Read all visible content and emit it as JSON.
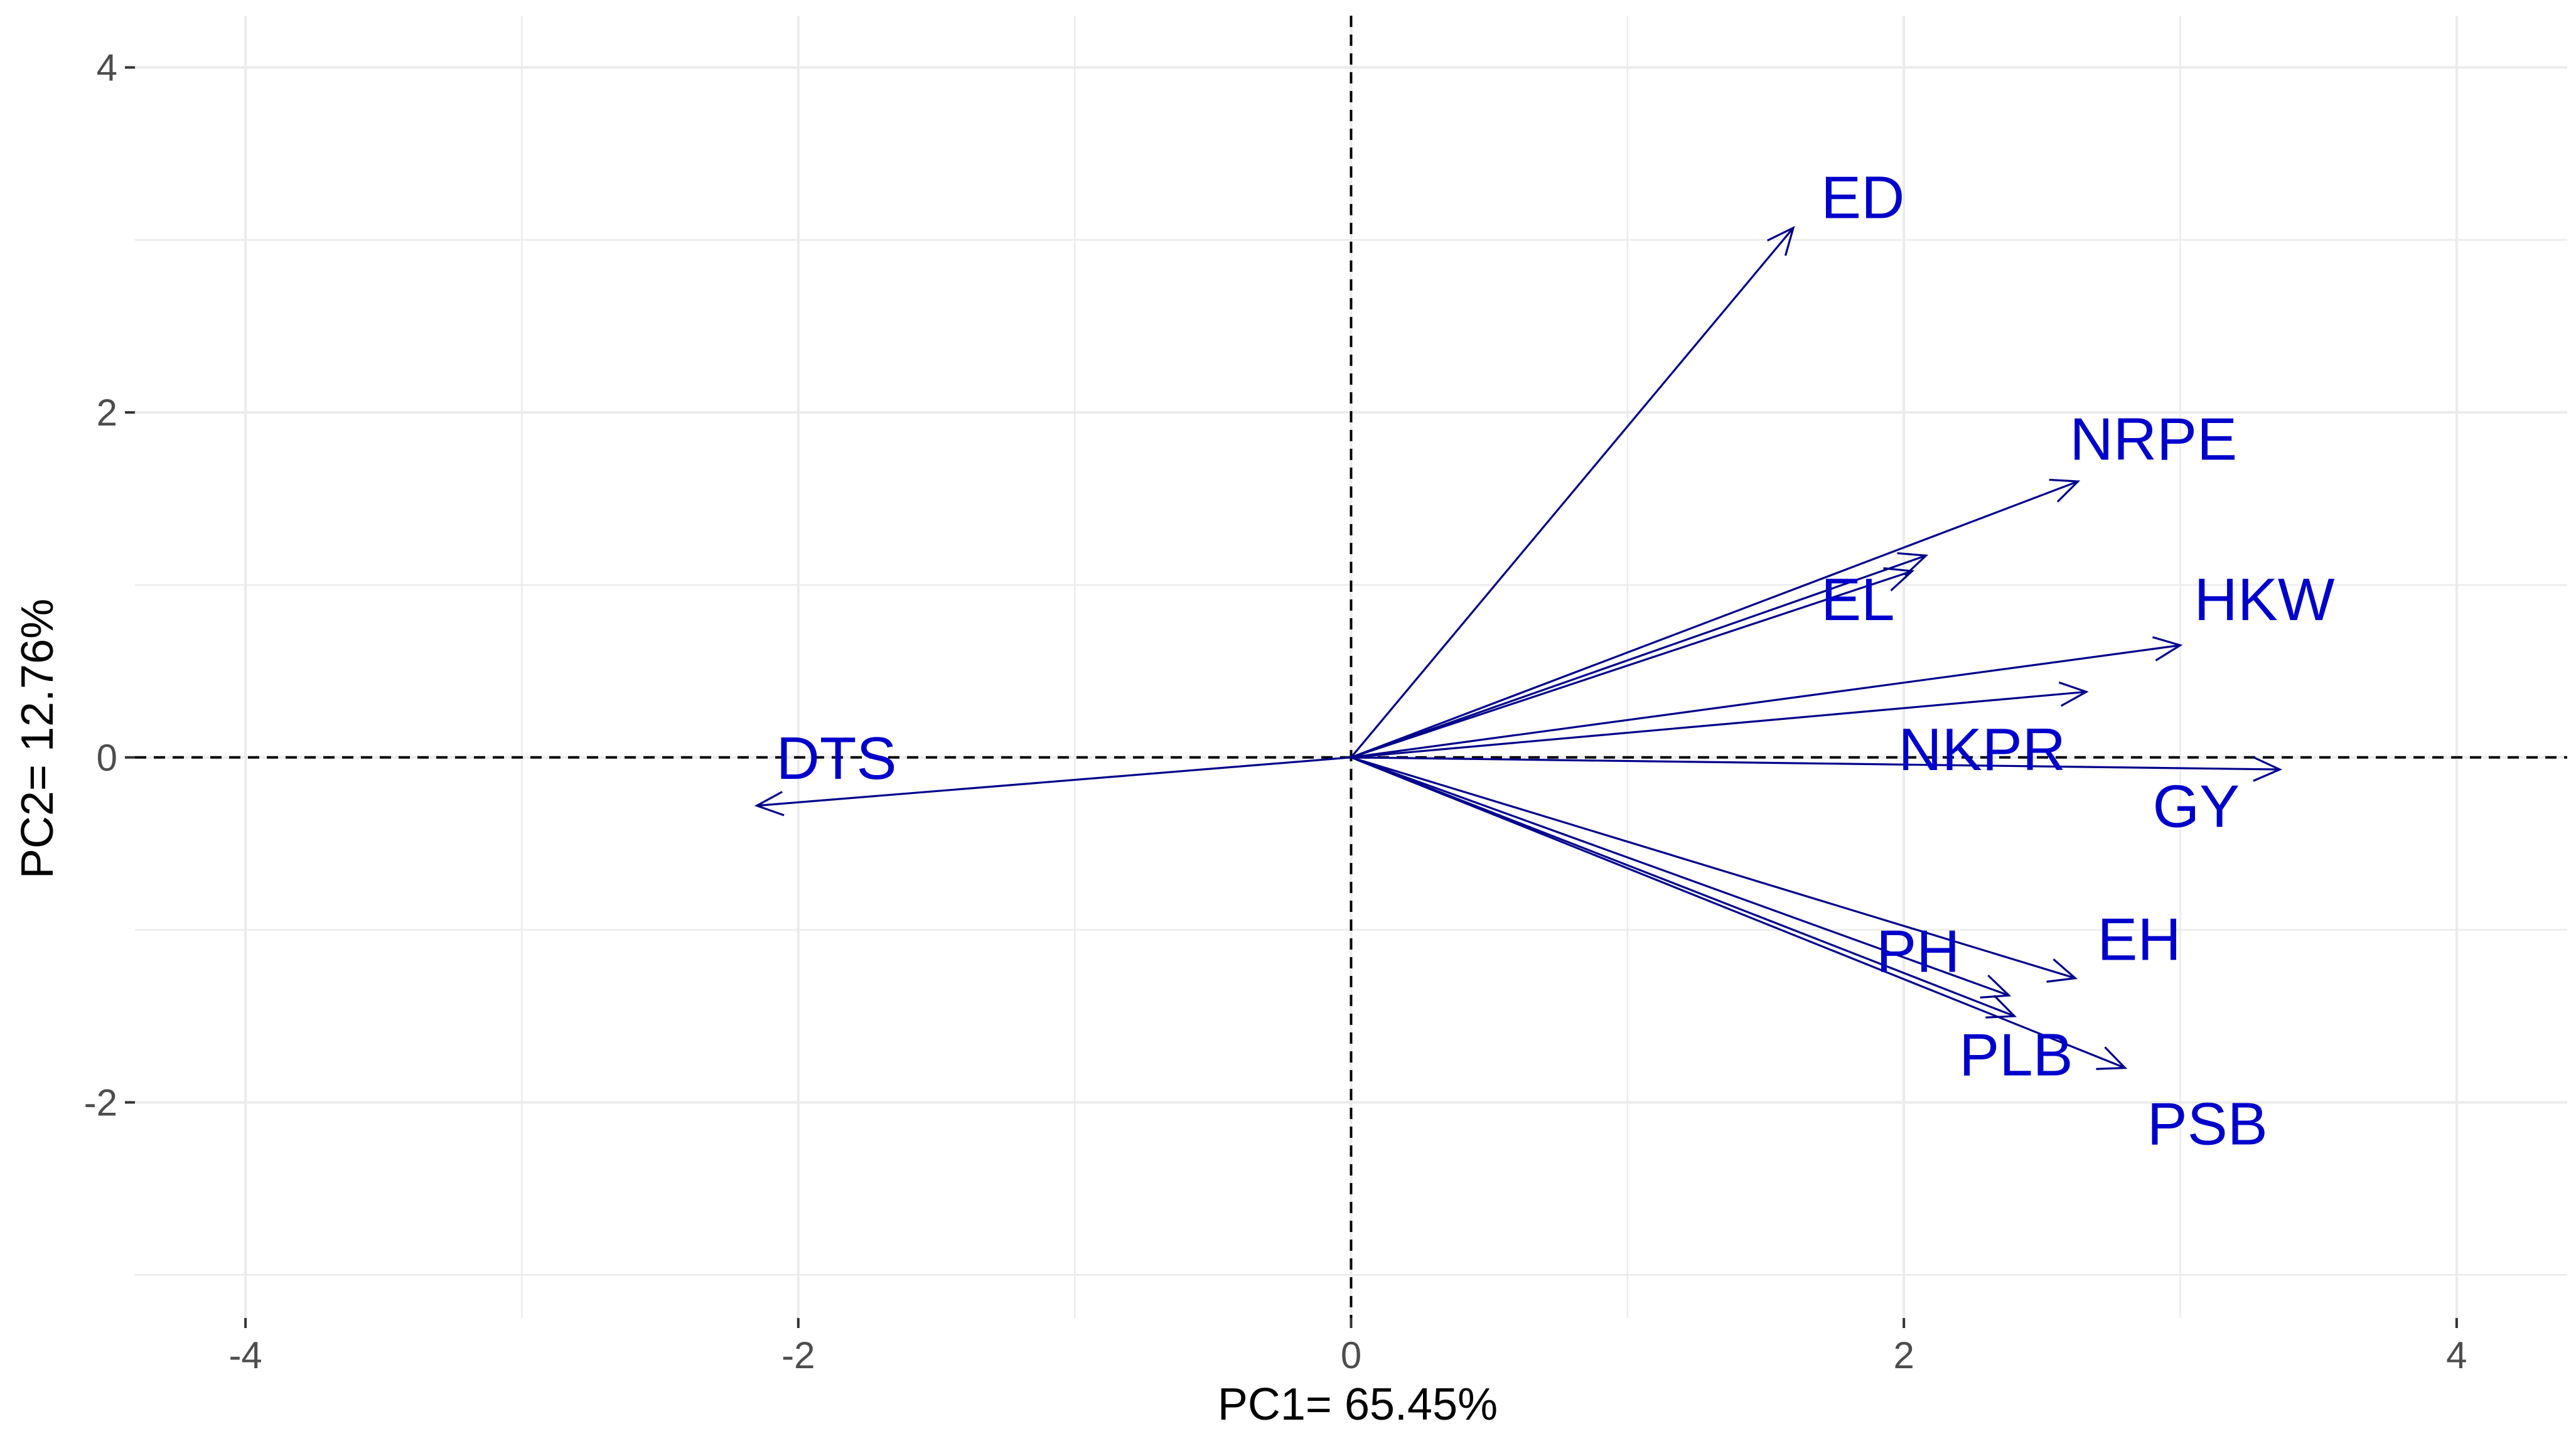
{
  "chart_data": {
    "type": "biplot",
    "title": "",
    "xlabel": "PC1= 65.45%",
    "ylabel": "PC2= 12.76%",
    "xlim": [
      -4.4,
      4.4
    ],
    "ylim": [
      -3.25,
      4.3
    ],
    "x_ticks": [
      -4,
      -2,
      0,
      2,
      4
    ],
    "y_ticks": [
      -2,
      0,
      2,
      4
    ],
    "x_tick_labels": [
      "-4",
      "-2",
      "0",
      "2",
      "4"
    ],
    "y_tick_labels": [
      "-2",
      "0",
      "2",
      "4"
    ],
    "grid": true,
    "reference_lines": {
      "x": 0,
      "y": 0,
      "style": "dashed"
    },
    "colors": {
      "vectors": "#00008b",
      "labels": "#0000cc",
      "grid": "#ebebeb",
      "ticks": "#4d4d4d",
      "axis_title": "#000000",
      "reference": "#000000",
      "background": "#ffffff"
    },
    "vectors": [
      {
        "name": "ED",
        "x": 1.6,
        "y": 3.07,
        "label_x": 1.7,
        "label_y": 3.25
      },
      {
        "name": "NRPE",
        "x": 2.63,
        "y": 1.6,
        "label_x": 2.6,
        "label_y": 1.85
      },
      {
        "name": "EL",
        "x": 2.08,
        "y": 1.17,
        "label_x": 1.7,
        "label_y": 0.92
      },
      {
        "name": "EL",
        "x": 2.03,
        "y": 1.08,
        "label_x": null,
        "label_y": null
      },
      {
        "name": "HKW",
        "x": 3.0,
        "y": 0.65,
        "label_x": 3.05,
        "label_y": 0.92
      },
      {
        "name": "NKPR",
        "x": 2.66,
        "y": 0.38,
        "label_x": 1.98,
        "label_y": 0.05
      },
      {
        "name": "GY",
        "x": 3.36,
        "y": -0.07,
        "label_x": 2.9,
        "label_y": -0.28
      },
      {
        "name": "EH",
        "x": 2.62,
        "y": -1.28,
        "label_x": 2.7,
        "label_y": -1.05
      },
      {
        "name": "PH",
        "x": 2.38,
        "y": -1.38,
        "label_x": 1.9,
        "label_y": -1.12
      },
      {
        "name": "PLB",
        "x": 2.4,
        "y": -1.5,
        "label_x": 2.2,
        "label_y": -1.72
      },
      {
        "name": "PSB",
        "x": 2.8,
        "y": -1.8,
        "label_x": 2.88,
        "label_y": -2.12
      },
      {
        "name": "DTS",
        "x": -2.15,
        "y": -0.28,
        "label_x": -2.08,
        "label_y": 0.0
      }
    ]
  }
}
